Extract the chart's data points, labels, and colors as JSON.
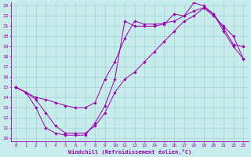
{
  "xlabel": "Windchill (Refroidissement éolien,°C)",
  "xlim": [
    -0.5,
    23.5
  ],
  "ylim": [
    9.7,
    23.3
  ],
  "yticks": [
    10,
    11,
    12,
    13,
    14,
    15,
    16,
    17,
    18,
    19,
    20,
    21,
    22,
    23
  ],
  "xticks": [
    0,
    1,
    2,
    3,
    4,
    5,
    6,
    7,
    8,
    9,
    10,
    11,
    12,
    13,
    14,
    15,
    16,
    17,
    18,
    19,
    20,
    21,
    22,
    23
  ],
  "bg_color": "#c8ecec",
  "grid_color": "#a0d4d4",
  "line_color": "#9900aa",
  "curve1_x": [
    0,
    1,
    2,
    3,
    4,
    5,
    6,
    7,
    8,
    9,
    10,
    11,
    12,
    13,
    14,
    15,
    16,
    17,
    18,
    19,
    20,
    21,
    22,
    23
  ],
  "curve1_y": [
    15.0,
    14.5,
    13.0,
    11.0,
    10.5,
    10.3,
    10.3,
    10.3,
    11.5,
    13.2,
    15.8,
    21.5,
    21.0,
    21.0,
    21.0,
    21.2,
    22.2,
    22.0,
    23.3,
    23.0,
    22.2,
    20.8,
    19.2,
    19.0
  ],
  "curve2_x": [
    0,
    1,
    2,
    3,
    4,
    5,
    6,
    7,
    8,
    9,
    10,
    11,
    12,
    13,
    14,
    15,
    16,
    17,
    18,
    19,
    20,
    21,
    22,
    23
  ],
  "curve2_y": [
    15.0,
    14.5,
    14.0,
    13.8,
    13.5,
    13.2,
    13.0,
    13.0,
    13.5,
    15.8,
    17.5,
    19.8,
    21.5,
    21.2,
    21.2,
    21.3,
    21.5,
    22.0,
    22.5,
    22.8,
    22.2,
    20.5,
    19.0,
    17.8
  ],
  "curve3_x": [
    0,
    1,
    2,
    3,
    4,
    5,
    6,
    7,
    8,
    9,
    10,
    11,
    12,
    13,
    14,
    15,
    16,
    17,
    18,
    19,
    20,
    21,
    22,
    23
  ],
  "curve3_y": [
    15.0,
    14.5,
    13.8,
    12.5,
    11.2,
    10.5,
    10.5,
    10.5,
    11.2,
    12.5,
    14.5,
    15.8,
    16.5,
    17.5,
    18.5,
    19.5,
    20.5,
    21.5,
    22.0,
    22.8,
    22.0,
    21.0,
    20.0,
    17.8
  ]
}
